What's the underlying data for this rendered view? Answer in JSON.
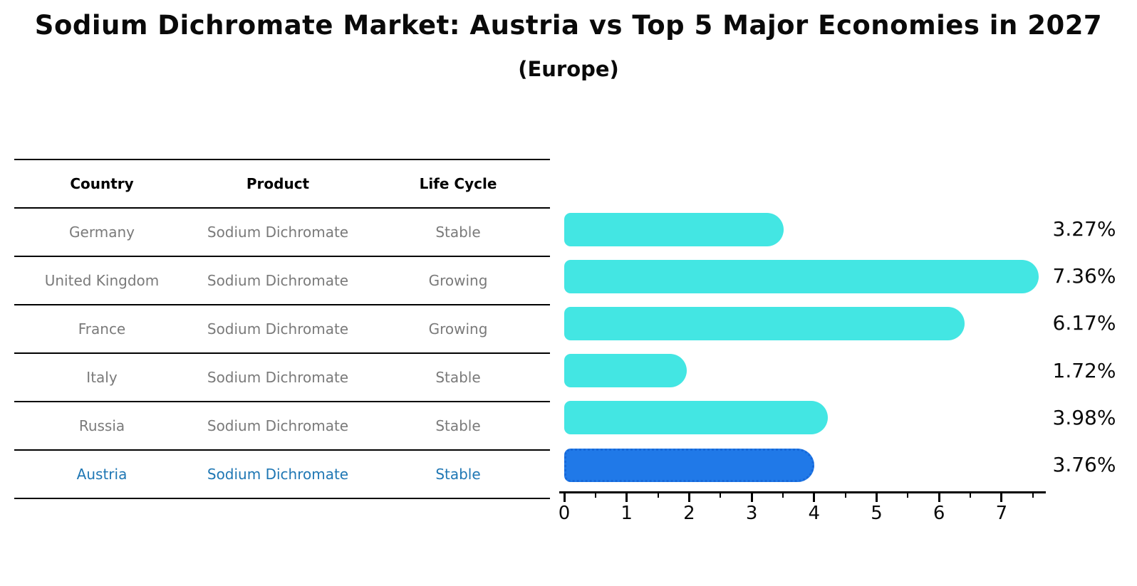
{
  "title": "Sodium Dichromate Market: Austria vs Top 5 Major Economies in 2027",
  "subtitle": "(Europe)",
  "table": {
    "headers": [
      "Country",
      "Product",
      "Life Cycle"
    ],
    "rows": [
      {
        "country": "Germany",
        "product": "Sodium Dichromate",
        "life_cycle": "Stable",
        "highlight": false
      },
      {
        "country": "United Kingdom",
        "product": "Sodium Dichromate",
        "life_cycle": "Growing",
        "highlight": false
      },
      {
        "country": "France",
        "product": "Sodium Dichromate",
        "life_cycle": "Growing",
        "highlight": false
      },
      {
        "country": "Italy",
        "product": "Sodium Dichromate",
        "life_cycle": "Stable",
        "highlight": false
      },
      {
        "country": "Russia",
        "product": "Sodium Dichromate",
        "life_cycle": "Stable",
        "highlight": false
      },
      {
        "country": "Austria",
        "product": "Sodium Dichromate",
        "life_cycle": "Stable",
        "highlight": true
      }
    ]
  },
  "chart_data": {
    "type": "bar",
    "orientation": "horizontal",
    "title": "Sodium Dichromate Market: Austria vs Top 5 Major Economies in 2027",
    "subtitle": "(Europe)",
    "categories": [
      "Germany",
      "United Kingdom",
      "France",
      "Italy",
      "Russia",
      "Austria"
    ],
    "values": [
      3.27,
      7.36,
      6.17,
      1.72,
      3.98,
      3.76
    ],
    "value_labels": [
      "3.27%",
      "7.36%",
      "6.17%",
      "1.72%",
      "3.98%",
      "3.76%"
    ],
    "highlight_index": 5,
    "xlabel": "",
    "ylabel": "",
    "xlim": [
      0,
      7.7
    ],
    "x_ticks": [
      0,
      1,
      2,
      3,
      4,
      5,
      6,
      7
    ],
    "x_tick_labels": [
      "0",
      "1",
      "2",
      "3",
      "4",
      "5",
      "6",
      "7"
    ],
    "minor_ticks_step": 0.5,
    "grid": false,
    "legend": false
  },
  "colors": {
    "bar": "#43E6E3",
    "highlight_bar": "#2079E8",
    "highlight_bar_border": "#1668D9",
    "row_text": "#7a7a7a",
    "highlight_text": "#1f77b4",
    "header_text": "#000000",
    "axis": "#000000",
    "title_text": "#0a0a0a"
  }
}
